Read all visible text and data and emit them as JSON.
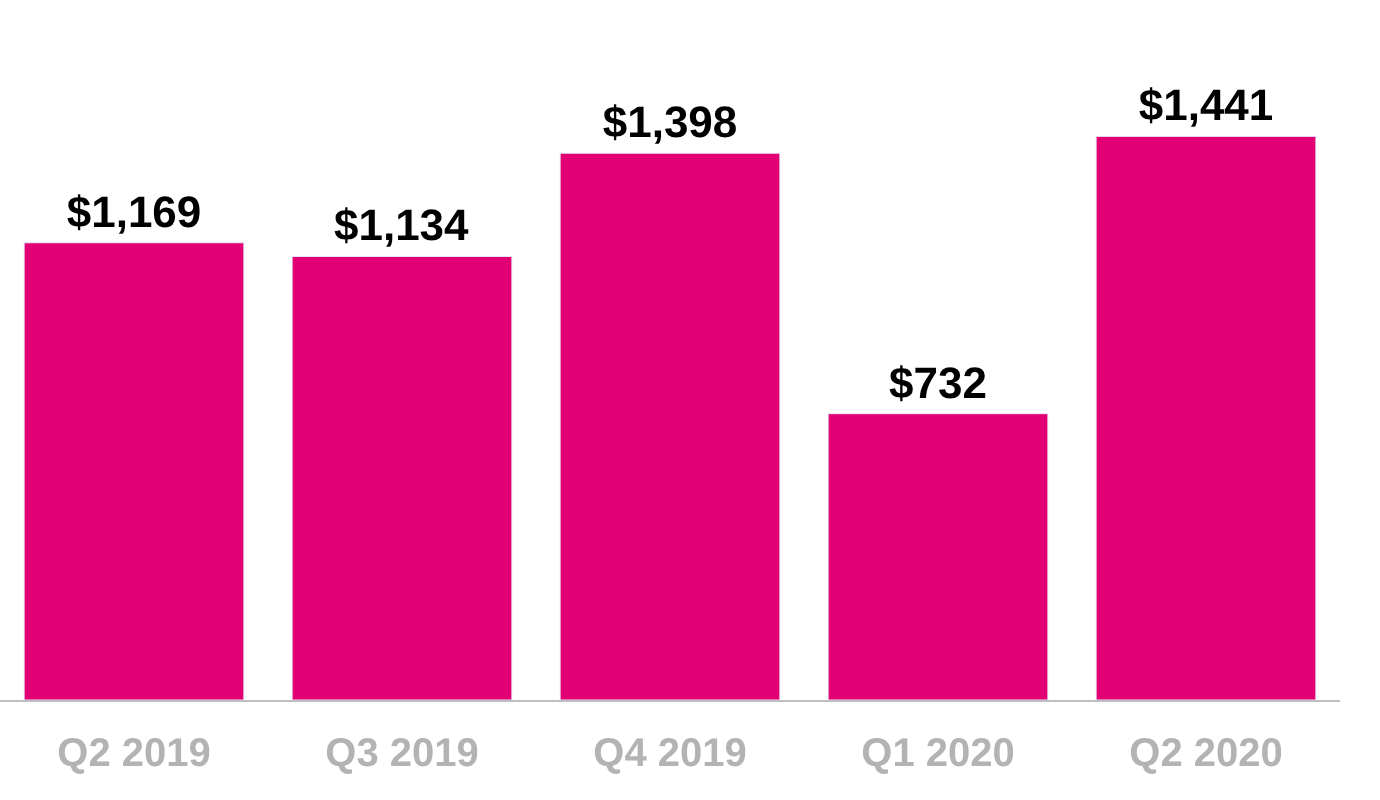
{
  "chart_data": {
    "type": "bar",
    "categories": [
      "Q2 2019",
      "Q3 2019",
      "Q4 2019",
      "Q1 2020",
      "Q2 2020"
    ],
    "values": [
      1169,
      1134,
      1398,
      732,
      1441
    ],
    "value_labels": [
      "$1,169",
      "$1,134",
      "$1,398",
      "$732",
      "$1,441"
    ],
    "color": "#e20074"
  }
}
